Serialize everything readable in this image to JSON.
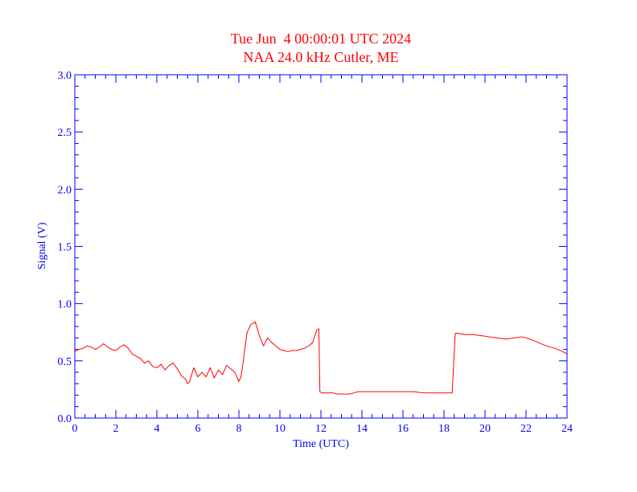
{
  "chart_data": {
    "type": "line",
    "title": "Tue Jun  4 00:00:01 UTC 2024",
    "subtitle": "NAA 24.0 kHz Cutler, ME",
    "xlabel": "Time (UTC)",
    "ylabel": "Signal (V)",
    "xlim": [
      0,
      24
    ],
    "ylim": [
      0.0,
      3.0
    ],
    "x_ticks": [
      0,
      2,
      4,
      6,
      8,
      10,
      12,
      14,
      16,
      18,
      20,
      22,
      24
    ],
    "x_tick_labels": [
      "0",
      "2",
      "4",
      "6",
      "8",
      "10",
      "12",
      "14",
      "16",
      "18",
      "20",
      "22",
      "24"
    ],
    "y_ticks": [
      0.0,
      0.5,
      1.0,
      1.5,
      2.0,
      2.5,
      3.0
    ],
    "y_tick_labels": [
      "0.0",
      "0.5",
      "1.0",
      "1.5",
      "2.0",
      "2.5",
      "3.0"
    ],
    "grid": false,
    "colors": {
      "axis": "#0000ff",
      "series": "#ff0000",
      "title": "#ff0000"
    },
    "series": [
      {
        "x": [
          0.0,
          0.2,
          0.4,
          0.6,
          0.8,
          1.0,
          1.2,
          1.4,
          1.6,
          1.8,
          2.0,
          2.2,
          2.4,
          2.6,
          2.8,
          3.0,
          3.2,
          3.4,
          3.6,
          3.8,
          4.0,
          4.2,
          4.4,
          4.6,
          4.8,
          5.0,
          5.2,
          5.4,
          5.5,
          5.6,
          5.8,
          6.0,
          6.2,
          6.4,
          6.6,
          6.8,
          7.0,
          7.2,
          7.4,
          7.6,
          7.8,
          8.0,
          8.1,
          8.2,
          8.3,
          8.4,
          8.6,
          8.8,
          9.0,
          9.2,
          9.4,
          9.6,
          9.8,
          10.0,
          10.2,
          10.4,
          10.6,
          10.8,
          11.0,
          11.2,
          11.4,
          11.6,
          11.8,
          11.9,
          11.95,
          12.05,
          12.2,
          12.4,
          12.6,
          12.8,
          13.0,
          13.2,
          13.4,
          13.6,
          13.8,
          14.0,
          14.2,
          14.4,
          14.6,
          14.8,
          15.0,
          15.5,
          16.0,
          16.5,
          17.0,
          17.5,
          18.0,
          18.4,
          18.55,
          18.7,
          19.0,
          19.4,
          19.8,
          20.2,
          20.6,
          21.0,
          21.4,
          21.8,
          22.2,
          22.6,
          23.0,
          23.4,
          23.8,
          24.0
        ],
        "values": [
          0.58,
          0.6,
          0.61,
          0.63,
          0.62,
          0.6,
          0.62,
          0.65,
          0.62,
          0.6,
          0.59,
          0.62,
          0.64,
          0.61,
          0.56,
          0.54,
          0.52,
          0.48,
          0.5,
          0.45,
          0.44,
          0.47,
          0.42,
          0.46,
          0.48,
          0.43,
          0.37,
          0.34,
          0.3,
          0.32,
          0.44,
          0.36,
          0.4,
          0.36,
          0.44,
          0.35,
          0.42,
          0.38,
          0.46,
          0.43,
          0.4,
          0.32,
          0.36,
          0.48,
          0.62,
          0.75,
          0.82,
          0.84,
          0.72,
          0.63,
          0.7,
          0.66,
          0.63,
          0.6,
          0.59,
          0.58,
          0.59,
          0.59,
          0.6,
          0.61,
          0.63,
          0.66,
          0.77,
          0.78,
          0.23,
          0.22,
          0.22,
          0.22,
          0.22,
          0.21,
          0.21,
          0.21,
          0.21,
          0.22,
          0.23,
          0.23,
          0.23,
          0.23,
          0.23,
          0.23,
          0.23,
          0.23,
          0.23,
          0.23,
          0.22,
          0.22,
          0.22,
          0.22,
          0.74,
          0.74,
          0.73,
          0.73,
          0.72,
          0.71,
          0.7,
          0.69,
          0.7,
          0.71,
          0.69,
          0.66,
          0.63,
          0.61,
          0.58,
          0.56
        ]
      }
    ]
  }
}
